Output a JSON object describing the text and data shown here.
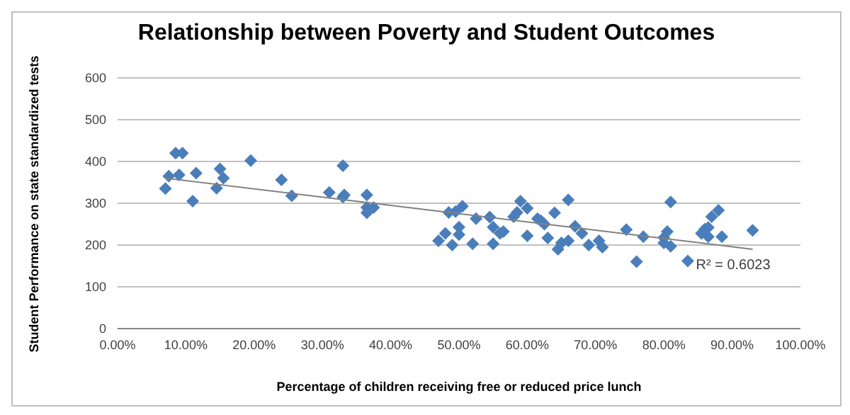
{
  "chart_data": {
    "type": "scatter",
    "title": "Relationship between Poverty and Student Outcomes",
    "xlabel": "Percentage of children receiving free or reduced price lunch",
    "ylabel": "Student Performance on state standardized tests",
    "xlim": [
      0,
      1
    ],
    "xticks": [
      {
        "value": 0,
        "label": "0.00%"
      },
      {
        "value": 0.1,
        "label": "10.00%"
      },
      {
        "value": 0.2,
        "label": "20.00%"
      },
      {
        "value": 0.3,
        "label": "30.00%"
      },
      {
        "value": 0.4,
        "label": "40.00%"
      },
      {
        "value": 0.5,
        "label": "50.00%"
      },
      {
        "value": 0.6,
        "label": "60.00%"
      },
      {
        "value": 0.7,
        "label": "70.00%"
      },
      {
        "value": 0.8,
        "label": "80.00%"
      },
      {
        "value": 0.9,
        "label": "90.00%"
      },
      {
        "value": 1,
        "label": "100.00%"
      }
    ],
    "ylim": [
      0,
      600
    ],
    "yticks": [
      0,
      100,
      200,
      300,
      400,
      500,
      600
    ],
    "grid": "y",
    "marker": "diamond",
    "annotations": [
      "R² = 0.6023"
    ],
    "series": [
      {
        "color": "#4a7ebb",
        "x": [
          0.07,
          0.075,
          0.085,
          0.09,
          0.095,
          0.11,
          0.115,
          0.145,
          0.15,
          0.155,
          0.195,
          0.24,
          0.255,
          0.31,
          0.33,
          0.33,
          0.332,
          0.365,
          0.365,
          0.365,
          0.375,
          0.47,
          0.48,
          0.485,
          0.49,
          0.495,
          0.5,
          0.5,
          0.505,
          0.52,
          0.525,
          0.545,
          0.55,
          0.55,
          0.56,
          0.565,
          0.58,
          0.585,
          0.59,
          0.6,
          0.6,
          0.615,
          0.62,
          0.625,
          0.63,
          0.64,
          0.645,
          0.65,
          0.66,
          0.66,
          0.67,
          0.68,
          0.69,
          0.705,
          0.71,
          0.745,
          0.76,
          0.77,
          0.8,
          0.805,
          0.8,
          0.81,
          0.81,
          0.835,
          0.855,
          0.86,
          0.865,
          0.865,
          0.87,
          0.88,
          0.885,
          0.93
        ],
        "values": [
          335,
          365,
          420,
          368,
          420,
          305,
          372,
          336,
          382,
          360,
          402,
          356,
          318,
          326,
          390,
          315,
          320,
          320,
          290,
          277,
          290,
          210,
          228,
          278,
          200,
          280,
          243,
          225,
          293,
          203,
          263,
          267,
          203,
          243,
          228,
          232,
          268,
          278,
          305,
          288,
          222,
          263,
          258,
          250,
          217,
          277,
          190,
          205,
          308,
          210,
          245,
          228,
          200,
          210,
          195,
          237,
          160,
          220,
          218,
          232,
          205,
          197,
          303,
          162,
          228,
          238,
          242,
          220,
          268,
          283,
          220,
          235
        ]
      },
      {
        "type": "line",
        "color": "#808080",
        "marker": "none",
        "x": [
          0.07,
          0.93
        ],
        "values": [
          360,
          190
        ]
      }
    ]
  }
}
